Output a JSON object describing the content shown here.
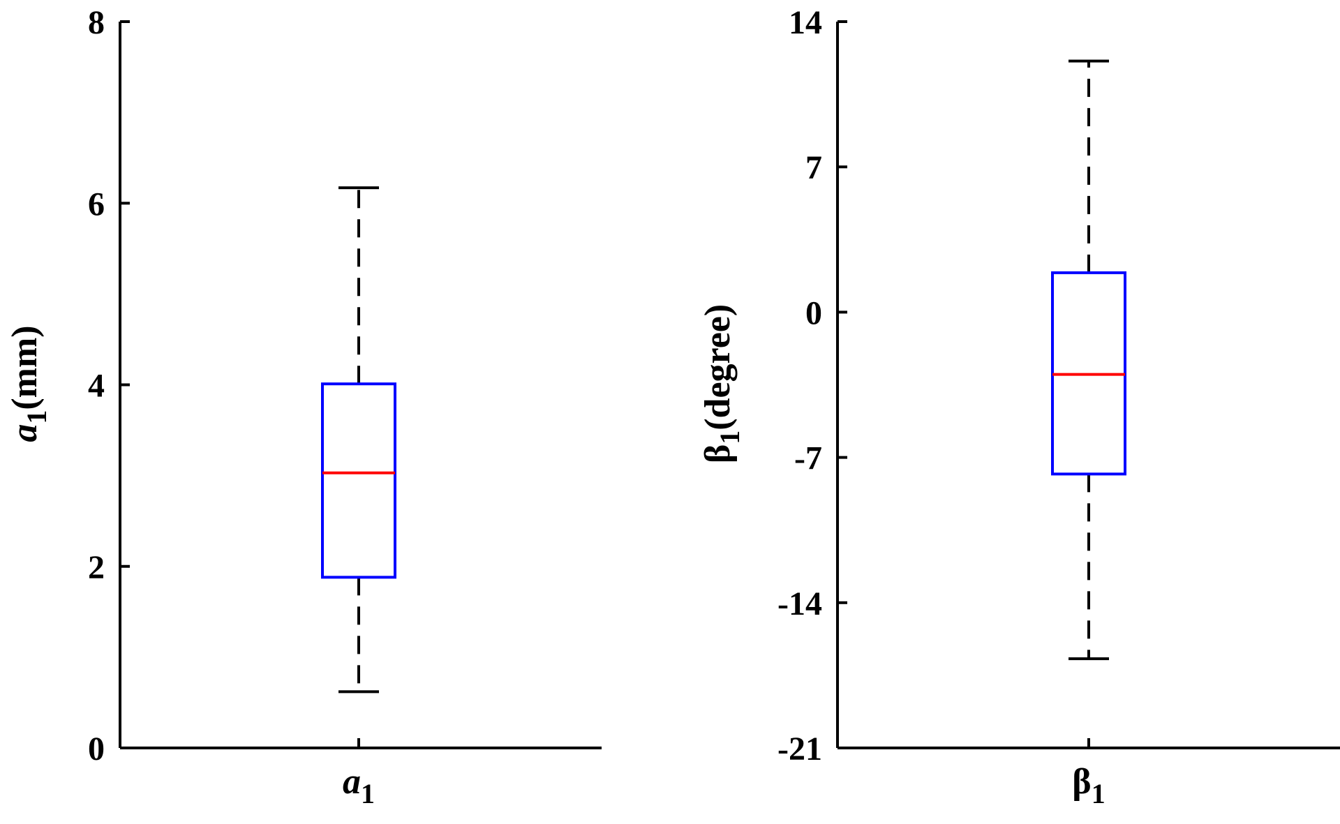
{
  "chart_data": [
    {
      "type": "box",
      "ylabel": "(mm)",
      "ylabel_symbol": "a",
      "ylabel_subscript": "1",
      "ylim": [
        0,
        8
      ],
      "yticks": [
        0,
        2,
        4,
        6,
        8
      ],
      "ytick_labels": [
        "0",
        "2",
        "4",
        "6",
        "8"
      ],
      "category": "a",
      "category_subscript": "1",
      "box": {
        "whisker_low": 0.62,
        "q1": 1.88,
        "median": 3.03,
        "q3": 4.01,
        "whisker_high": 6.17
      },
      "grid": false
    },
    {
      "type": "box",
      "ylabel": "(degree)",
      "ylabel_symbol": "β",
      "ylabel_subscript": "1",
      "ylim": [
        -21,
        14
      ],
      "yticks": [
        -21,
        -14,
        -7,
        0,
        7,
        14
      ],
      "ytick_labels": [
        "-21",
        "-14",
        "-7",
        "0",
        "7",
        "14"
      ],
      "category": "β",
      "category_subscript": "1",
      "box": {
        "whisker_low": -16.7,
        "q1": -7.8,
        "median": -3.0,
        "q3": 1.9,
        "whisker_high": 12.1
      },
      "grid": false
    }
  ],
  "colors": {
    "box": "#0000ff",
    "median": "#ff0000",
    "whisker": "#000000",
    "axis": "#000000"
  }
}
